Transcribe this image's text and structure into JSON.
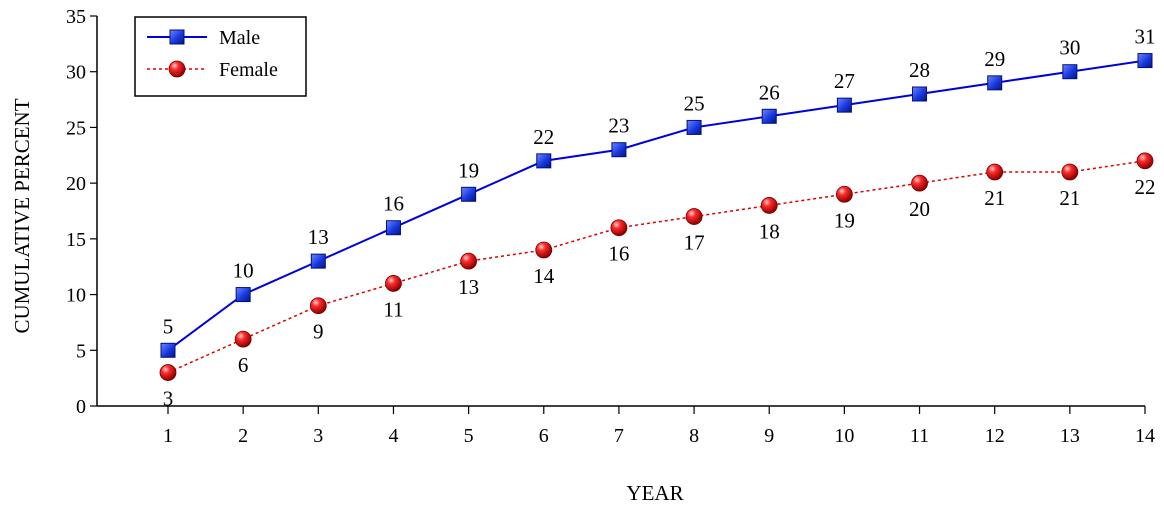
{
  "chart_data": {
    "type": "line",
    "title": "",
    "xlabel": "YEAR",
    "ylabel": "CUMULATIVE PERCENT",
    "x": [
      1,
      2,
      3,
      4,
      5,
      6,
      7,
      8,
      9,
      10,
      11,
      12,
      13,
      14
    ],
    "ylim": [
      0,
      35
    ],
    "yticks": [
      0,
      5,
      10,
      15,
      20,
      25,
      30,
      35
    ],
    "grid": false,
    "legend_position": "top-left",
    "series": [
      {
        "name": "Male",
        "values": [
          5,
          10,
          13,
          16,
          19,
          22,
          23,
          25,
          26,
          27,
          28,
          29,
          30,
          31
        ],
        "color": "#0000dd",
        "marker": "square",
        "line_style": "solid",
        "label_position": "above"
      },
      {
        "name": "Female",
        "values": [
          3,
          6,
          9,
          11,
          13,
          14,
          16,
          17,
          18,
          19,
          20,
          21,
          21,
          22
        ],
        "color": "#dd0000",
        "marker": "circle",
        "line_style": "dotted",
        "label_position": "below"
      }
    ]
  }
}
